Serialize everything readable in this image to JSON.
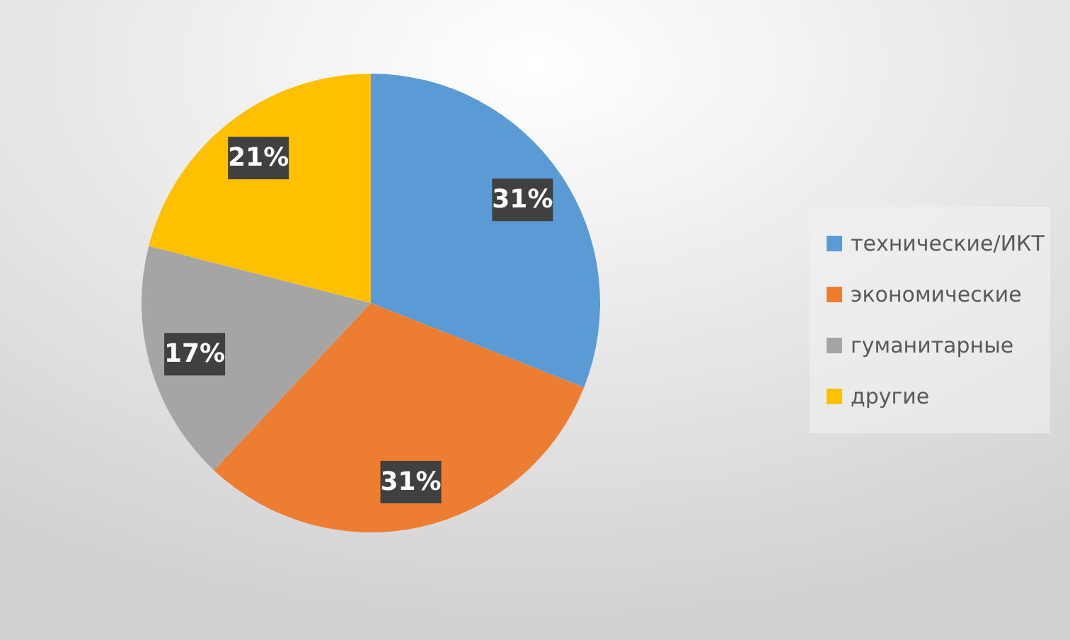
{
  "chart_data": {
    "type": "pie",
    "categories": [
      "технические/ИКТ",
      "экономические",
      "гуманитарные",
      "другие"
    ],
    "values": [
      31,
      31,
      17,
      21
    ],
    "colors": [
      "#5b9bd5",
      "#ed7d31",
      "#a5a5a5",
      "#ffc000"
    ],
    "value_labels": [
      "31%",
      "31%",
      "17%",
      "21%"
    ],
    "legend": "right"
  }
}
